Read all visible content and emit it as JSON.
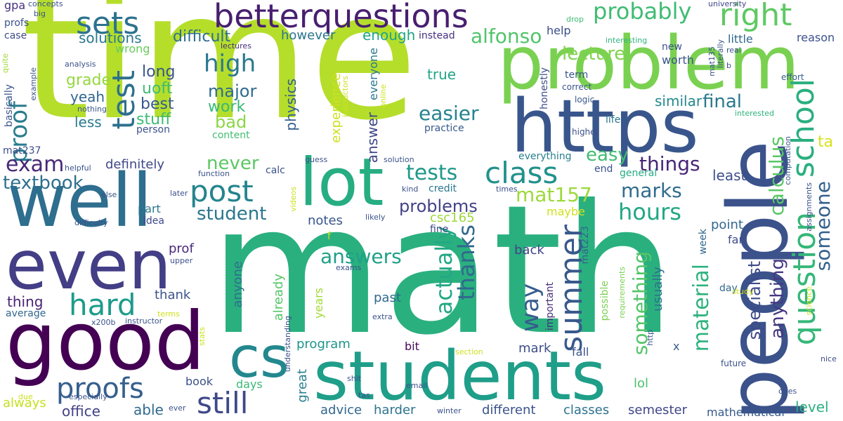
{
  "words": [
    {
      "text": "time",
      "color": "#b5de2b"
    },
    {
      "text": "math",
      "color": "#2ab07f"
    },
    {
      "text": "problem",
      "color": "#7ad151"
    },
    {
      "text": "people",
      "color": "#3b528b"
    },
    {
      "text": "https",
      "color": "#39568c"
    },
    {
      "text": "well",
      "color": "#2e6e8e"
    },
    {
      "text": "good",
      "color": "#440154"
    },
    {
      "text": "even",
      "color": "#433e85"
    },
    {
      "text": "students",
      "color": "#1f9e89"
    },
    {
      "text": "lot",
      "color": "#26ad81"
    },
    {
      "text": "cs",
      "color": "#23888e"
    },
    {
      "text": "betterquestions",
      "color": "#481f70"
    },
    {
      "text": "sets",
      "color": "#2c728e"
    },
    {
      "text": "post",
      "color": "#25848e"
    },
    {
      "text": "class",
      "color": "#21918c"
    },
    {
      "text": "right",
      "color": "#5ec962"
    },
    {
      "text": "test",
      "color": "#2d708e"
    },
    {
      "text": "school",
      "color": "#29af7f"
    },
    {
      "text": "question",
      "color": "#35b779"
    },
    {
      "text": "summer",
      "color": "#38598c"
    },
    {
      "text": "hard",
      "color": "#1e9b8a"
    },
    {
      "text": "proofs",
      "color": "#355f8d"
    },
    {
      "text": "still",
      "color": "#3e4989"
    },
    {
      "text": "probably",
      "color": "#3fbc73"
    },
    {
      "text": "proof",
      "color": "#287c8e"
    },
    {
      "text": "high",
      "color": "#2a788e"
    },
    {
      "text": "exam",
      "color": "#482878"
    },
    {
      "text": "tests",
      "color": "#1f988b"
    },
    {
      "text": "way",
      "color": "#365c8d"
    },
    {
      "text": "answers",
      "color": "#1fa088"
    },
    {
      "text": "hours",
      "color": "#22a785"
    },
    {
      "text": "marks",
      "color": "#2f6c8e"
    },
    {
      "text": "actually",
      "color": "#22a884"
    },
    {
      "text": "thanks",
      "color": "#31688e"
    },
    {
      "text": "someone",
      "color": "#34618d"
    },
    {
      "text": "textbook",
      "color": "#2e6f8e"
    },
    {
      "text": "material",
      "color": "#2db27d"
    },
    {
      "text": "calculus",
      "color": "#58c765"
    },
    {
      "text": "mat157",
      "color": "#9dd93b"
    },
    {
      "text": "things",
      "color": "#482576"
    },
    {
      "text": "easier",
      "color": "#25838e"
    },
    {
      "text": "something",
      "color": "#54c568"
    },
    {
      "text": "alfonso",
      "color": "#50c46a"
    },
    {
      "text": "lecture",
      "color": "#81d34d"
    },
    {
      "text": "easy",
      "color": "#40bd72"
    },
    {
      "text": "final",
      "color": "#29798e"
    },
    {
      "text": "problems",
      "color": "#424186"
    },
    {
      "text": "anything",
      "color": "#453882"
    },
    {
      "text": "student",
      "color": "#2a768e"
    },
    {
      "text": "specialist",
      "color": "#3e4a89"
    },
    {
      "text": "never",
      "color": "#5cc863"
    },
    {
      "text": "bad",
      "color": "#8bd646"
    },
    {
      "text": "major",
      "color": "#2f6b8e"
    },
    {
      "text": "work",
      "color": "#38b977"
    },
    {
      "text": "uoft",
      "color": "#3fbc73"
    },
    {
      "text": "best",
      "color": "#38588c"
    },
    {
      "text": "stuff",
      "color": "#3dbc74"
    },
    {
      "text": "grade",
      "color": "#95d840"
    },
    {
      "text": "long",
      "color": "#3b528b"
    },
    {
      "text": "yeah",
      "color": "#31668e"
    },
    {
      "text": "less",
      "color": "#297a8e"
    },
    {
      "text": "ta",
      "color": "#d8e219"
    },
    {
      "text": "difficult",
      "color": "#2e6d8e"
    },
    {
      "text": "solutions",
      "color": "#2a778e"
    },
    {
      "text": "enough",
      "color": "#20a486"
    },
    {
      "text": "help",
      "color": "#3d4d8a"
    },
    {
      "text": "however",
      "color": "#2a768e"
    },
    {
      "text": "true",
      "color": "#20a386"
    },
    {
      "text": "similar",
      "color": "#23898e"
    },
    {
      "text": "experience",
      "color": "#cde11d"
    },
    {
      "text": "everyone",
      "color": "#2a778e"
    },
    {
      "text": "answer",
      "color": "#3f4788"
    },
    {
      "text": "physics",
      "color": "#355e8d"
    },
    {
      "text": "definitely",
      "color": "#3f4889"
    },
    {
      "text": "csc165",
      "color": "#9bd93c"
    },
    {
      "text": "notes",
      "color": "#39558c"
    },
    {
      "text": "point",
      "color": "#31678e"
    },
    {
      "text": "least",
      "color": "#3c4f8a"
    },
    {
      "text": "mark",
      "color": "#3d4e8a"
    },
    {
      "text": "program",
      "color": "#1f958b"
    },
    {
      "text": "great",
      "color": "#27808e"
    },
    {
      "text": "advice",
      "color": "#31678e"
    },
    {
      "text": "harder",
      "color": "#2c738e"
    },
    {
      "text": "different",
      "color": "#3a538b"
    },
    {
      "text": "classes",
      "color": "#2c738e"
    },
    {
      "text": "semester",
      "color": "#404688"
    },
    {
      "text": "level",
      "color": "#2ab07f"
    },
    {
      "text": "mathematical",
      "color": "#375a8c"
    },
    {
      "text": "office",
      "color": "#424086"
    },
    {
      "text": "able",
      "color": "#306a8e"
    },
    {
      "text": "always",
      "color": "#c8e020"
    },
    {
      "text": "lol",
      "color": "#4ac16d"
    },
    {
      "text": "book",
      "color": "#3c4f8a"
    },
    {
      "text": "thing",
      "color": "#482374"
    },
    {
      "text": "thank",
      "color": "#3a548c"
    },
    {
      "text": "average",
      "color": "#31678e"
    },
    {
      "text": "prof",
      "color": "#482979"
    },
    {
      "text": "past",
      "color": "#31688e"
    },
    {
      "text": "anyone",
      "color": "#2e6f8e"
    },
    {
      "text": "already",
      "color": "#54c568"
    },
    {
      "text": "years",
      "color": "#a2da37"
    },
    {
      "text": "bit",
      "color": "#46075a"
    },
    {
      "text": "days",
      "color": "#3aba76"
    },
    {
      "text": "usually",
      "color": "#2d718e"
    },
    {
      "text": "fall",
      "color": "#3b528b"
    },
    {
      "text": "back",
      "color": "#414487"
    },
    {
      "text": "maybe",
      "color": "#d0e11c"
    },
    {
      "text": "part",
      "color": "#2a778e"
    },
    {
      "text": "idea",
      "color": "#3e4989"
    },
    {
      "text": "fine",
      "color": "#3e4a89"
    },
    {
      "text": "x",
      "color": "#365d8d"
    },
    {
      "text": "worth",
      "color": "#3a548c"
    },
    {
      "text": "new",
      "color": "#3b528b"
    },
    {
      "text": "term",
      "color": "#39568c"
    },
    {
      "text": "life",
      "color": "#2a778e"
    },
    {
      "text": "practice",
      "color": "#37598c"
    },
    {
      "text": "everything",
      "color": "#27808e"
    },
    {
      "text": "calc",
      "color": "#3b518b"
    },
    {
      "text": "end",
      "color": "#3b528b"
    },
    {
      "text": "credit",
      "color": "#2a768e"
    },
    {
      "text": "gpa",
      "color": "#46307e"
    },
    {
      "text": "profs",
      "color": "#3b528b"
    },
    {
      "text": "case",
      "color": "#3e4c8a"
    },
    {
      "text": "mat237",
      "color": "#3d4d8a"
    },
    {
      "text": "basically",
      "color": "#3b528b"
    },
    {
      "text": "wrong",
      "color": "#67cc5c"
    },
    {
      "text": "important",
      "color": "#472c7a"
    },
    {
      "text": "possible",
      "color": "#7ad151"
    },
    {
      "text": "mat223",
      "color": "#32658e"
    },
    {
      "text": "reason",
      "color": "#3b518b"
    },
    {
      "text": "little",
      "color": "#30698e"
    },
    {
      "text": "interesting",
      "color": "#2fb47c"
    },
    {
      "text": "university",
      "color": "#404588"
    },
    {
      "text": "honestly",
      "color": "#3d4d8a"
    },
    {
      "text": "correct",
      "color": "#3a548c"
    },
    {
      "text": "logic",
      "color": "#39568c"
    },
    {
      "text": "higher",
      "color": "#3b518b"
    },
    {
      "text": "person",
      "color": "#3b528b"
    },
    {
      "text": "content",
      "color": "#40bd72"
    },
    {
      "text": "instead",
      "color": "#46307e"
    },
    {
      "text": "week",
      "color": "#30698e"
    },
    {
      "text": "far",
      "color": "#3e4a89"
    },
    {
      "text": "day",
      "color": "#31678e"
    },
    {
      "text": "general",
      "color": "#25ab82"
    },
    {
      "text": "interested",
      "color": "#2fb47c"
    },
    {
      "text": "effort",
      "color": "#35608d"
    },
    {
      "text": "computation",
      "color": "#38588c"
    },
    {
      "text": "future",
      "color": "#3b528b"
    },
    {
      "text": "nice",
      "color": "#3d4d8a"
    },
    {
      "text": "concepts",
      "color": "#3b518b"
    },
    {
      "text": "big",
      "color": "#3b528b"
    },
    {
      "text": "lectures",
      "color": "#472d7b"
    },
    {
      "text": "drop",
      "color": "#3fbc73"
    },
    {
      "text": "real",
      "color": "#3b528b"
    },
    {
      "text": "mat135",
      "color": "#3b518b"
    },
    {
      "text": "literally",
      "color": "#3b528b"
    },
    {
      "text": "b",
      "color": "#3e4a89"
    },
    {
      "text": "analysis",
      "color": "#3b528b"
    },
    {
      "text": "example",
      "color": "#3b528b"
    },
    {
      "text": "quite",
      "color": "#a2da37"
    },
    {
      "text": "nothing",
      "color": "#39568c"
    },
    {
      "text": "instructors",
      "color": "#cde11d"
    },
    {
      "text": "online",
      "color": "#cde11d"
    },
    {
      "text": "solution",
      "color": "#3b528b"
    },
    {
      "text": "guess",
      "color": "#3b518b"
    },
    {
      "text": "function",
      "color": "#3b528b"
    },
    {
      "text": "helpful",
      "color": "#3b528b"
    },
    {
      "text": "else",
      "color": "#3b528b"
    },
    {
      "text": "difficulty",
      "color": "#3b528b"
    },
    {
      "text": "videos",
      "color": "#cde11d"
    },
    {
      "text": "kind",
      "color": "#3b528b"
    },
    {
      "text": "later",
      "color": "#3b528b"
    },
    {
      "text": "likely",
      "color": "#3b528b"
    },
    {
      "text": "f",
      "color": "#d0e11c"
    },
    {
      "text": "upper",
      "color": "#3b528b"
    },
    {
      "text": "exams",
      "color": "#3b528b"
    },
    {
      "text": "times",
      "color": "#3b528b"
    },
    {
      "text": "assignments",
      "color": "#3b528b"
    },
    {
      "text": "requirements",
      "color": "#7ad151"
    },
    {
      "text": "science",
      "color": "#cde11d"
    },
    {
      "text": "http",
      "color": "#3b528b"
    },
    {
      "text": "understanding",
      "color": "#3b528b"
    },
    {
      "text": "study",
      "color": "#cde11d"
    },
    {
      "text": "x200b",
      "color": "#3b528b"
    },
    {
      "text": "instructor",
      "color": "#3b528b"
    },
    {
      "text": "terms",
      "color": "#cde11d"
    },
    {
      "text": "stats",
      "color": "#cde11d"
    },
    {
      "text": "extra",
      "color": "#3b528b"
    },
    {
      "text": "section",
      "color": "#cde11d"
    },
    {
      "text": "shit",
      "color": "#3b528b"
    },
    {
      "text": "email",
      "color": "#3b528b"
    },
    {
      "text": "tas",
      "color": "#3b528b"
    },
    {
      "text": "winter",
      "color": "#3b528b"
    },
    {
      "text": "ever",
      "color": "#3b528b"
    },
    {
      "text": "especially",
      "color": "#3b528b"
    },
    {
      "text": "due",
      "color": "#cde11d"
    },
    {
      "text": "ones",
      "color": "#3b528b"
    }
  ]
}
